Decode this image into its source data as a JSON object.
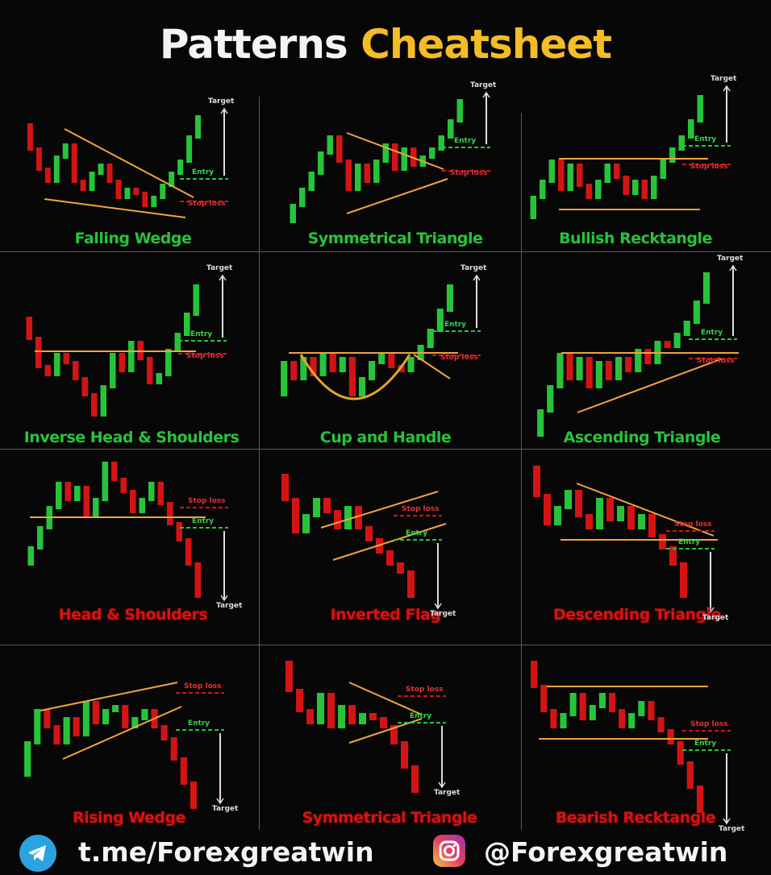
{
  "title": {
    "part1": "Patterns",
    "part2": "Cheatsheet"
  },
  "colors": {
    "bull": "#27c43a",
    "bear": "#d41414",
    "line": "#f0a43c",
    "accent": "#f5bd25"
  },
  "labels": {
    "target": "Target",
    "entry": "Entry",
    "stop": "Stop loss"
  },
  "patterns": [
    {
      "name": "Falling Wedge",
      "type": "bullish"
    },
    {
      "name": "Symmetrical Triangle",
      "type": "bullish"
    },
    {
      "name": "Bullish Recktangle",
      "type": "bullish"
    },
    {
      "name": "Inverse Head & Shoulders",
      "type": "bullish"
    },
    {
      "name": "Cup and Handle",
      "type": "bullish"
    },
    {
      "name": "Ascending Triangle",
      "type": "bullish"
    },
    {
      "name": "Head & Shoulders",
      "type": "bearish"
    },
    {
      "name": "Inverted Flag",
      "type": "bearish"
    },
    {
      "name": "Descending Triangle",
      "type": "bearish"
    },
    {
      "name": "Rising Wedge",
      "type": "bearish"
    },
    {
      "name": "Symmetrical Triangle",
      "type": "bearish"
    },
    {
      "name": "Bearish Recktangle",
      "type": "bearish"
    }
  ],
  "footer": {
    "telegram": "t.me/Forexgreatwin",
    "instagram": "@Forexgreatwin",
    "telegram_icon": "telegram-icon",
    "instagram_icon": "instagram-icon"
  }
}
